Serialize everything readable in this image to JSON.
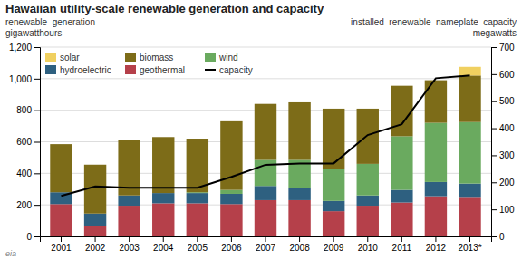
{
  "chart_data": {
    "type": "bar",
    "stacked": true,
    "title": "Hawaiian utility-scale renewable generation and capacity",
    "ylabel": [
      "renewable  generation",
      "gigawatthours"
    ],
    "y2label": [
      "installed  renewable  nameplate  capacity",
      "megawatts"
    ],
    "annotations": [
      "eia"
    ],
    "categories": [
      "2001",
      "2002",
      "2003",
      "2004",
      "2005",
      "2006",
      "2007",
      "2008",
      "2009",
      "2010",
      "2011",
      "2012",
      "2013*"
    ],
    "series": [
      {
        "name": "geothermal",
        "color": "#b5404a",
        "values": [
          205,
          65,
          195,
          210,
          210,
          205,
          230,
          230,
          160,
          195,
          215,
          255,
          245
        ]
      },
      {
        "name": "hydroelectric",
        "color": "#2e6080",
        "values": [
          75,
          80,
          65,
          65,
          65,
          65,
          90,
          80,
          65,
          65,
          80,
          90,
          90
        ]
      },
      {
        "name": "wind",
        "color": "#6aaa5f",
        "values": [
          0,
          0,
          0,
          0,
          5,
          25,
          165,
          175,
          200,
          200,
          340,
          375,
          390
        ]
      },
      {
        "name": "biomass",
        "color": "#7d6c18",
        "values": [
          305,
          310,
          350,
          355,
          340,
          435,
          355,
          365,
          385,
          350,
          320,
          270,
          295
        ]
      },
      {
        "name": "solar",
        "color": "#f0d060",
        "values": [
          0,
          0,
          0,
          0,
          0,
          0,
          0,
          0,
          0,
          0,
          0,
          0,
          55
        ]
      },
      {
        "name": "capacity",
        "type": "line",
        "axis": "y2",
        "color": "#000000",
        "values": [
          150,
          185,
          180,
          180,
          180,
          220,
          265,
          270,
          270,
          375,
          415,
          585,
          595
        ]
      }
    ],
    "ylim": [
      0,
      1200
    ],
    "yticks": [
      0,
      200,
      400,
      600,
      800,
      {
        "value": 1000,
        "label": "1,000"
      },
      {
        "value": 1200,
        "label": "1,200"
      }
    ],
    "y2lim": [
      0,
      700
    ],
    "y2ticks": [
      0,
      100,
      200,
      300,
      400,
      500,
      600,
      700
    ],
    "grid": true,
    "legend": "top-left"
  }
}
